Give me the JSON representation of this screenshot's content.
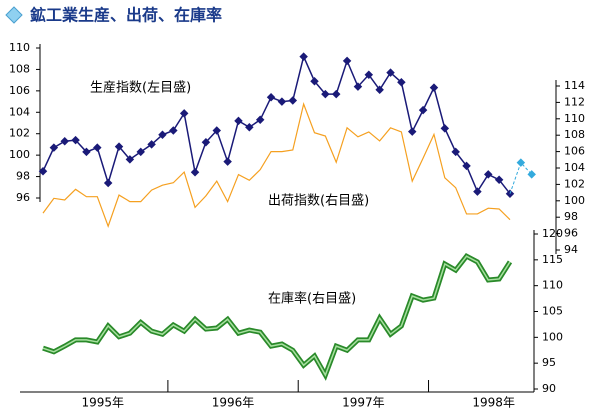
{
  "chart_data": {
    "type": "line",
    "title": "鉱工業生産、出荷、在庫率",
    "categories": [
      null,
      null,
      null,
      null,
      null,
      null,
      null,
      null,
      null,
      null,
      null,
      null,
      null,
      null,
      null,
      null,
      null,
      null,
      null,
      null,
      null,
      null,
      null,
      null,
      null,
      null,
      null,
      null,
      null,
      null,
      null,
      null,
      null,
      null,
      null,
      null,
      null,
      null,
      null,
      null,
      null,
      null,
      null,
      null,
      null,
      null
    ],
    "year_labels": [
      "1995年",
      "1996年",
      "1997年",
      "1998年"
    ],
    "ylim": [
      96,
      110
    ],
    "yticks": [
      96,
      98,
      100,
      102,
      104,
      106,
      108,
      110
    ],
    "y2lim": [
      94,
      114
    ],
    "y2ticks": [
      94,
      96,
      98,
      100,
      102,
      104,
      106,
      108,
      110,
      112,
      114
    ],
    "y3lim": [
      90,
      120
    ],
    "y3ticks": [
      90,
      95,
      100,
      105,
      110,
      115,
      120
    ],
    "series": [
      {
        "name": "生産指数(左目盛)",
        "color": "#1a1a78",
        "axis": "y",
        "values": [
          98.5,
          100.7,
          101.3,
          101.4,
          100.3,
          100.7,
          97.4,
          100.8,
          99.6,
          100.3,
          101.0,
          101.9,
          102.3,
          103.9,
          98.4,
          101.2,
          102.3,
          99.4,
          103.2,
          102.6,
          103.3,
          105.4,
          105.0,
          105.1,
          109.2,
          106.9,
          105.7,
          105.7,
          108.8,
          106.4,
          107.5,
          106.1,
          107.7,
          106.8,
          102.2,
          104.2,
          106.3,
          102.5,
          100.3,
          99.0,
          96.6,
          98.2,
          97.7,
          96.4,
          null,
          null
        ]
      },
      {
        "name": "出荷指数(右目盛)",
        "color": "#f5a020",
        "axis": "y2",
        "values": [
          98.5,
          100.3,
          100.1,
          101.4,
          100.5,
          100.5,
          96.9,
          100.7,
          99.9,
          99.9,
          101.3,
          101.9,
          102.2,
          103.5,
          99.2,
          100.6,
          102.4,
          99.9,
          103.2,
          102.5,
          103.8,
          106.0,
          106.0,
          106.2,
          111.8,
          108.3,
          107.9,
          104.7,
          108.9,
          107.8,
          108.4,
          107.3,
          108.9,
          108.4,
          102.4,
          105.2,
          108.1,
          102.8,
          101.6,
          98.4,
          98.4,
          99.1,
          99.0,
          97.7,
          null,
          null
        ]
      },
      {
        "name": "在庫率(右目盛)",
        "color": "#2a8a2a",
        "axis": "y3",
        "values": [
          97.9,
          97.2,
          98.3,
          99.5,
          99.5,
          99.1,
          102.2,
          100.1,
          100.8,
          102.9,
          101.2,
          100.6,
          102.4,
          101.2,
          103.5,
          101.6,
          101.8,
          103.5,
          100.8,
          101.4,
          101.0,
          98.3,
          98.7,
          97.5,
          94.6,
          96.4,
          92.7,
          98.3,
          97.5,
          99.5,
          99.5,
          103.7,
          100.6,
          102.2,
          108.0,
          107.2,
          107.6,
          114.2,
          113.0,
          115.7,
          114.6,
          111.1,
          111.3,
          114.6,
          null,
          null
        ]
      },
      {
        "color": "#33aadd",
        "axis": "y",
        "dashed": true,
        "values": [
          null,
          null,
          null,
          null,
          null,
          null,
          null,
          null,
          null,
          null,
          null,
          null,
          null,
          null,
          null,
          null,
          null,
          null,
          null,
          null,
          null,
          null,
          null,
          null,
          null,
          null,
          null,
          null,
          null,
          null,
          null,
          null,
          null,
          null,
          null,
          null,
          null,
          null,
          null,
          null,
          null,
          null,
          null,
          null,
          99.3,
          98.2
        ]
      }
    ]
  }
}
